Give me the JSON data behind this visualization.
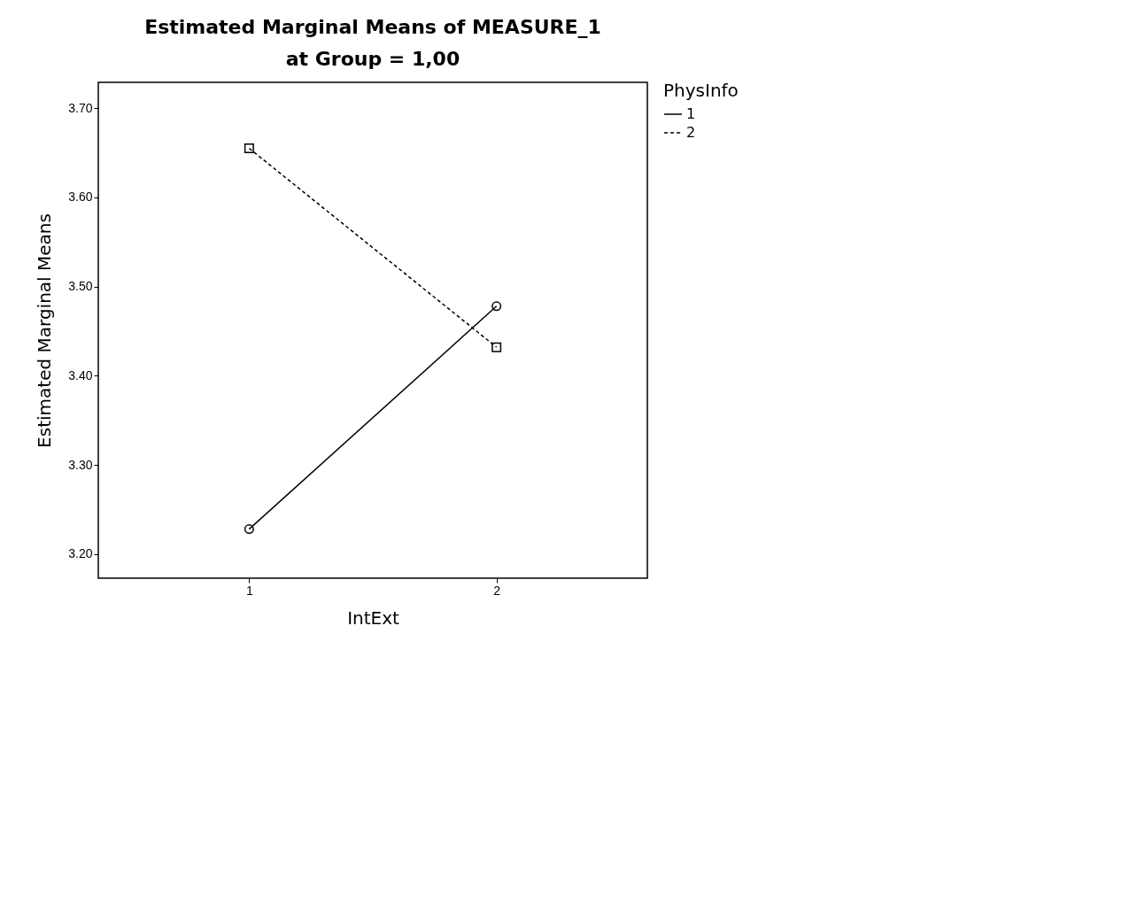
{
  "chart_data": {
    "type": "line",
    "title": "Estimated Marginal Means of MEASURE_1",
    "subtitle": "at Group = 1,00",
    "xlabel": "IntExt",
    "ylabel": "Estimated Marginal Means",
    "legend_title": "PhysInfo",
    "legend": "top right",
    "grid": false,
    "categories": [
      "1",
      "2"
    ],
    "ylim": [
      3.173,
      3.729
    ],
    "yticks": [
      {
        "value": 3.2,
        "label": "3.20"
      },
      {
        "value": 3.3,
        "label": "3.30"
      },
      {
        "value": 3.4,
        "label": "3.40"
      },
      {
        "value": 3.5,
        "label": "3.50"
      },
      {
        "value": 3.6,
        "label": "3.60"
      },
      {
        "value": 3.7,
        "label": "3.70"
      }
    ],
    "series": [
      {
        "name": "1",
        "color": "#000000",
        "values": [
          3.228,
          3.478
        ],
        "marker": "circle",
        "line_style": "solid"
      },
      {
        "name": "2",
        "color": "#000000",
        "values": [
          3.655,
          3.432
        ],
        "marker": "square",
        "line_style": "dashed"
      }
    ]
  }
}
